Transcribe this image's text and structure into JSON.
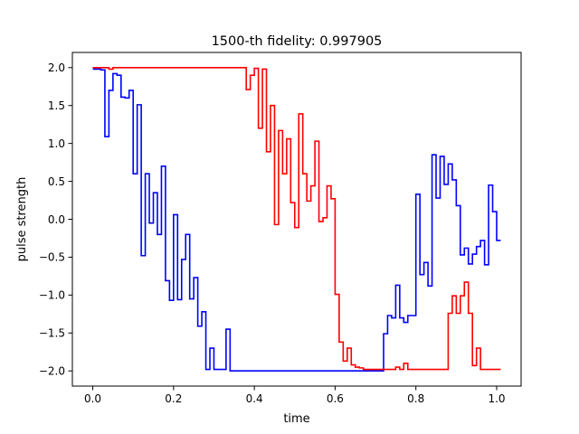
{
  "chart_data": {
    "type": "line",
    "title": "1500-th fidelity: 0.997905",
    "xlabel": "time",
    "ylabel": "pulse strength",
    "xlim": [
      -0.0505,
      1.0605
    ],
    "ylim": [
      -2.2,
      2.2
    ],
    "xticks": [
      0.0,
      0.2,
      0.4,
      0.6,
      0.8,
      1.0
    ],
    "xtick_labels": [
      "0.0",
      "0.2",
      "0.4",
      "0.6",
      "0.8",
      "1.0"
    ],
    "yticks": [
      -2.0,
      -1.5,
      -1.0,
      -0.5,
      0.0,
      0.5,
      1.0,
      1.5,
      2.0
    ],
    "ytick_labels": [
      "−2.0",
      "−1.5",
      "−1.0",
      "−0.5",
      "0.0",
      "0.5",
      "1.0",
      "1.5",
      "2.0"
    ],
    "grid": false,
    "step_width": 0.01,
    "series": [
      {
        "color": "#0000ff",
        "x_start": 0.0,
        "values": [
          1.98,
          1.98,
          1.97,
          1.09,
          1.7,
          1.92,
          1.9,
          1.61,
          1.6,
          1.7,
          0.6,
          1.51,
          -0.48,
          0.6,
          -0.05,
          0.35,
          -0.2,
          0.7,
          -0.81,
          -1.07,
          0.06,
          -1.06,
          -0.53,
          -0.2,
          -1.05,
          -0.77,
          -1.41,
          -1.22,
          -1.98,
          -1.7,
          -1.98,
          -1.98,
          -1.98,
          -1.45,
          -2.0,
          -2.0,
          -2.0,
          -2.0,
          -2.0,
          -2.0,
          -2.0,
          -2.0,
          -2.0,
          -2.0,
          -2.0,
          -2.0,
          -2.0,
          -2.0,
          -2.0,
          -2.0,
          -2.0,
          -2.0,
          -2.0,
          -2.0,
          -2.0,
          -2.0,
          -2.0,
          -2.0,
          -2.0,
          -2.0,
          -2.0,
          -2.0,
          -2.0,
          -2.0,
          -2.0,
          -2.0,
          -2.0,
          -2.0,
          -2.0,
          -2.0,
          -2.0,
          -2.0,
          -1.51,
          -1.27,
          -1.3,
          -0.87,
          -1.3,
          -1.36,
          -1.27,
          -1.27,
          0.33,
          -0.73,
          -0.57,
          -0.88,
          0.85,
          0.28,
          0.83,
          0.46,
          0.73,
          0.52,
          0.18,
          -0.47,
          -0.38,
          -0.59,
          -0.46,
          -0.36,
          -0.28,
          -0.6,
          0.45,
          0.1,
          -0.28
        ]
      },
      {
        "color": "#ff0000",
        "x_start": 0.0,
        "values": [
          2.0,
          2.0,
          2.0,
          2.0,
          1.98,
          2.0,
          2.0,
          2.0,
          2.0,
          2.0,
          2.0,
          2.0,
          2.0,
          2.0,
          2.0,
          2.0,
          2.0,
          2.0,
          2.0,
          2.0,
          2.0,
          2.0,
          2.0,
          2.0,
          2.0,
          2.0,
          2.0,
          2.0,
          2.0,
          2.0,
          2.0,
          2.0,
          2.0,
          2.0,
          2.0,
          2.0,
          2.0,
          2.0,
          1.71,
          1.9,
          1.99,
          1.2,
          1.98,
          0.89,
          1.5,
          -0.07,
          1.17,
          0.6,
          1.06,
          0.22,
          -0.11,
          1.39,
          0.6,
          0.24,
          0.44,
          1.03,
          -0.03,
          0.02,
          0.44,
          0.27,
          -0.99,
          -1.62,
          -1.87,
          -1.7,
          -1.92,
          -1.95,
          -1.96,
          -1.98,
          -1.98,
          -1.98,
          -1.98,
          -1.98,
          -1.98,
          -1.98,
          -1.98,
          -1.95,
          -1.98,
          -1.9,
          -1.98,
          -1.98,
          -1.98,
          -1.98,
          -1.98,
          -1.98,
          -1.98,
          -1.98,
          -1.98,
          -1.98,
          -1.24,
          -1.01,
          -1.24,
          -1.01,
          -0.83,
          -1.24,
          -1.93,
          -1.7,
          -1.98,
          -1.98,
          -1.98,
          -1.98,
          -1.98
        ]
      }
    ]
  }
}
